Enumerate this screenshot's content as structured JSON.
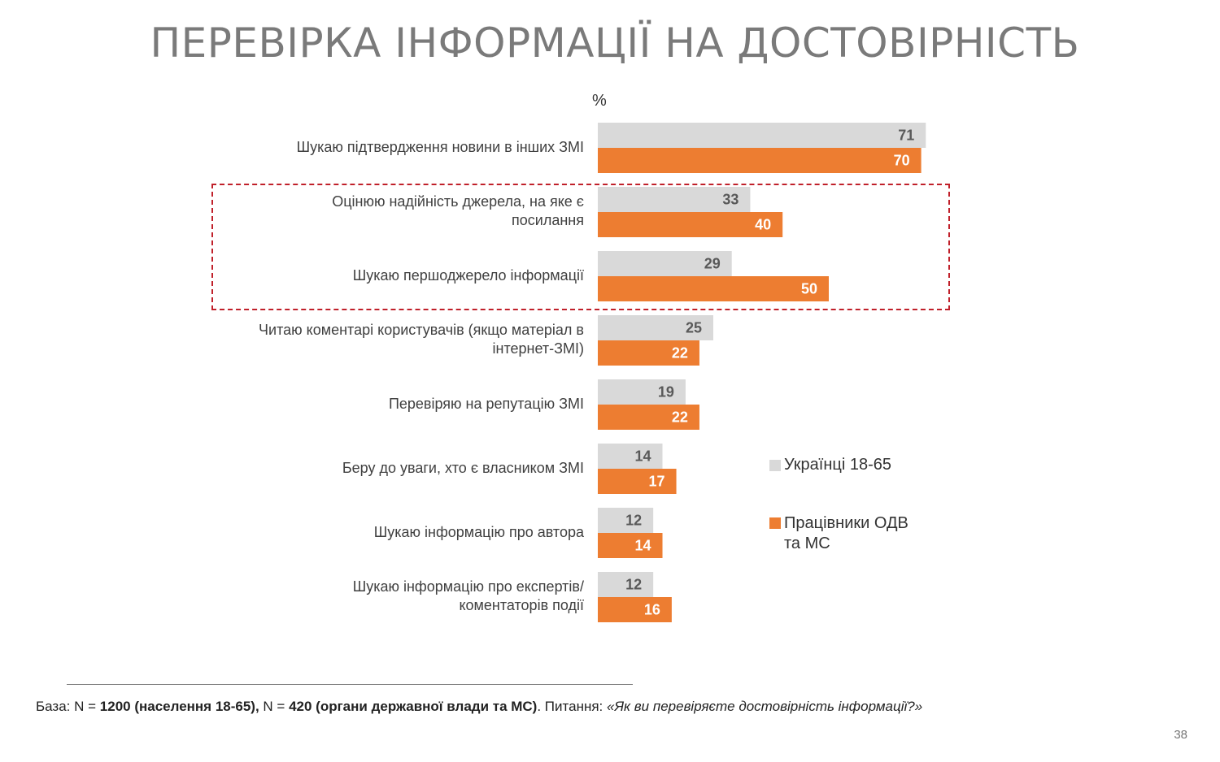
{
  "title": "ПЕРЕВІРКА ІНФОРМАЦІЇ НА ДОСТОВІРНІСТЬ",
  "unit": "%",
  "colors": {
    "series1": "#d9d9d9",
    "series2": "#ed7d31",
    "highlight": "#c0202a"
  },
  "chart_data": {
    "type": "bar",
    "orientation": "horizontal",
    "categories": [
      "Шукаю підтвердження новини в інших ЗМІ",
      "Оцінюю надійність джерела, на яке є посилання",
      "Шукаю першоджерело інформації",
      "Читаю коментарі користувачів (якщо матеріал в інтернет-ЗМІ)",
      "Перевіряю на репутацію ЗМІ",
      "Беру до уваги, хто є власником ЗМІ",
      "Шукаю інформацію про автора",
      "Шукаю інформацію про експертів/коментаторів події"
    ],
    "series": [
      {
        "name": "Українці 18-65",
        "values": [
          71,
          33,
          29,
          25,
          19,
          14,
          12,
          12
        ]
      },
      {
        "name": "Працівники ОДВ та МС",
        "values": [
          70,
          40,
          50,
          22,
          22,
          17,
          14,
          16
        ]
      }
    ],
    "highlighted_categories": [
      1,
      2
    ],
    "legend_position": "right",
    "grid": false
  },
  "legend": {
    "series1": "Українці 18-65",
    "series2_line1": "Працівники ОДВ",
    "series2_line2": "та МС"
  },
  "footnote": {
    "p1": "База: N = ",
    "b1": "1200 (населення 18-65),",
    "p2": " N = ",
    "b2": "420 (органи державної влади та МС)",
    "p3": ". Питання: ",
    "q": "«Як ви перевіряєте достовірність інформації?»"
  },
  "page_number": "38"
}
